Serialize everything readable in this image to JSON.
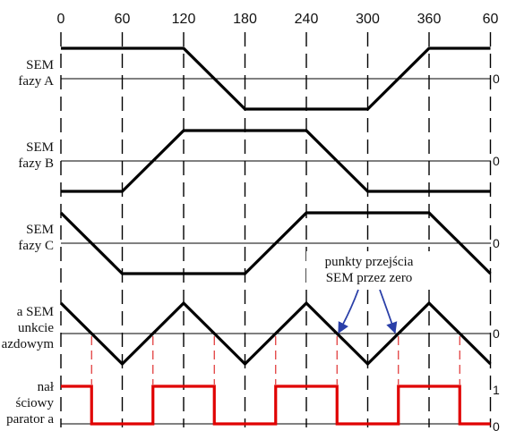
{
  "angle_ticks": [
    "0",
    "60",
    "120",
    "180",
    "240",
    "300",
    "360",
    "60"
  ],
  "rows": [
    {
      "id": "sem-a",
      "label_lines": [
        "SEM",
        "fazy A"
      ],
      "right_label": "0",
      "waveform": [
        [
          0,
          1
        ],
        [
          120,
          1
        ],
        [
          180,
          -1
        ],
        [
          300,
          -1
        ],
        [
          360,
          1
        ],
        [
          420,
          1
        ]
      ]
    },
    {
      "id": "sem-b",
      "label_lines": [
        "SEM",
        "fazy B"
      ],
      "right_label": "0",
      "waveform": [
        [
          0,
          -1
        ],
        [
          60,
          -1
        ],
        [
          120,
          1
        ],
        [
          240,
          1
        ],
        [
          300,
          -1
        ],
        [
          420,
          -1
        ]
      ]
    },
    {
      "id": "sem-c",
      "label_lines": [
        "SEM",
        "fazy C"
      ],
      "right_label": "0",
      "waveform": [
        [
          0,
          1
        ],
        [
          60,
          -1
        ],
        [
          180,
          -1
        ],
        [
          240,
          1
        ],
        [
          360,
          1
        ],
        [
          420,
          -1
        ]
      ]
    },
    {
      "id": "sem-neutral",
      "label_lines": [
        "a SEM",
        "unkcie",
        "azdowym"
      ],
      "right_label": "0",
      "waveform": [
        [
          0,
          1
        ],
        [
          60,
          -1
        ],
        [
          120,
          1
        ],
        [
          180,
          -1
        ],
        [
          240,
          1
        ],
        [
          300,
          -1
        ],
        [
          360,
          1
        ],
        [
          420,
          -1
        ]
      ],
      "zero_crossings": [
        30,
        90,
        150,
        210,
        270,
        330,
        390
      ]
    },
    {
      "id": "comparator",
      "label_lines": [
        "nał",
        "ściowy",
        "parator a"
      ],
      "right_label_high": "1",
      "right_label_low": "0",
      "waveform_digital": [
        [
          0,
          1
        ],
        [
          30,
          1
        ],
        [
          30,
          0
        ],
        [
          90,
          0
        ],
        [
          90,
          1
        ],
        [
          150,
          1
        ],
        [
          150,
          0
        ],
        [
          210,
          0
        ],
        [
          210,
          1
        ],
        [
          270,
          1
        ],
        [
          270,
          0
        ],
        [
          330,
          0
        ],
        [
          330,
          1
        ],
        [
          390,
          1
        ],
        [
          390,
          0
        ],
        [
          420,
          0
        ]
      ]
    }
  ],
  "annotation": {
    "lines": [
      "punkty przejścia",
      "SEM przez zero"
    ]
  },
  "colors": {
    "trace": "#000000",
    "digital": "#e00000",
    "guide_red": "#e03030",
    "arrow": "#2a3fa8"
  }
}
